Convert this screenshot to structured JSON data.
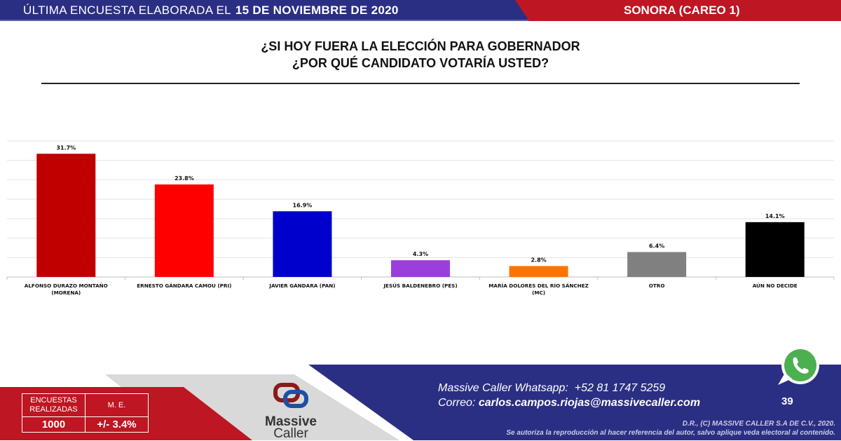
{
  "header": {
    "prefix": "ÚLTIMA ENCUESTA ELABORADA EL",
    "date": "15 DE NOVIEMBRE DE 2020",
    "region": "SONORA (CAREO 1)"
  },
  "title": {
    "line1": "¿SI HOY FUERA LA ELECCIÓN PARA GOBERNADOR",
    "line2": "¿POR QUÉ CANDIDATO VOTARÍA USTED?"
  },
  "chart_data": {
    "type": "bar",
    "categories": [
      "ALFONSO DURAZO MONTAÑO (MORENA)",
      "ERNESTO GÁNDARA CAMOU (PRI)",
      "JAVIER GÁNDARA (PAN)",
      "JESÚS BALDENEBRO (PES)",
      "MARÍA DOLORES DEL RÍO SÁNCHEZ (MC)",
      "OTRO",
      "AÚN NO DECIDE"
    ],
    "values": [
      31.7,
      23.8,
      16.9,
      4.3,
      2.8,
      6.4,
      14.1
    ],
    "data_labels": [
      "31.7%",
      "23.8%",
      "16.9%",
      "4.3%",
      "2.8%",
      "6.4%",
      "14.1%"
    ],
    "colors": [
      "#c00000",
      "#ff0000",
      "#0000cc",
      "#9b3fdc",
      "#ff7300",
      "#808080",
      "#000000"
    ],
    "ylim": [
      0,
      35
    ],
    "grid": true,
    "y_axis_labels_shown": false
  },
  "footer": {
    "stats": {
      "surveys_label": "ENCUESTAS REALIZADAS",
      "surveys_value": "1000",
      "me_label": "M. E.",
      "me_value": "+/- 3.4%"
    },
    "logo": {
      "line1": "Massive",
      "line2": "Caller"
    },
    "whatsapp_label": "Massive Caller Whatsapp:",
    "whatsapp_number": "+52 81 1747 5259",
    "email_label": "Correo:",
    "email": "carlos.campos.riojas@massivecaller.com",
    "page_number": "39",
    "copyright": "D.R., (C) MASSIVE CALLER S.A DE C.V., 2020.",
    "notice": "Se autoriza la reproducción al hacer referencia del autor, salvo aplique veda electoral al contenido.",
    "icon": "whatsapp-icon"
  }
}
